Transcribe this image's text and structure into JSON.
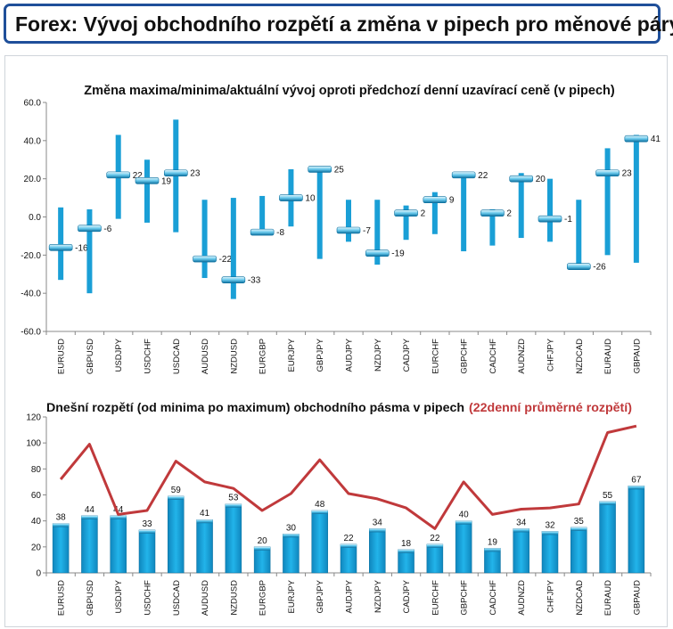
{
  "header": {
    "title": "Forex: Vývoj obchodního rozpětí a změna v pipech pro měnové páry"
  },
  "colors": {
    "bar_blue": "#1a9fd6",
    "avg_line": "#c0393b",
    "header_border": "#1f4f9a",
    "axis": "#888888"
  },
  "chart_data": [
    {
      "type": "range",
      "title": "Změna maxima/minima/aktuální vývoj oproti předchozí denní uzavírací ceně (v pipech)",
      "categories": [
        "EURUSD",
        "GBPUSD",
        "USDJPY",
        "USDCHF",
        "USDCAD",
        "AUDUSD",
        "NZDUSD",
        "EURGBP",
        "EURJPY",
        "GBPJPY",
        "AUDJPY",
        "NZDJPY",
        "CADJPY",
        "EURCHF",
        "GBPCHF",
        "CADCHF",
        "AUDNZD",
        "CHFJPY",
        "NZDCAD",
        "EURAUD",
        "GBPAUD"
      ],
      "high": [
        5,
        4,
        43,
        30,
        51,
        9,
        10,
        11,
        25,
        26,
        9,
        9,
        6,
        13,
        22,
        4,
        23,
        20,
        9,
        36,
        43
      ],
      "low": [
        -33,
        -40,
        -1,
        -3,
        -8,
        -32,
        -43,
        -9,
        -5,
        -22,
        -13,
        -25,
        -12,
        -9,
        -18,
        -15,
        -11,
        -13,
        -27,
        -20,
        -24
      ],
      "current": [
        -16,
        -6,
        22,
        19,
        23,
        -22,
        -33,
        -8,
        10,
        25,
        -7,
        -19,
        2,
        9,
        22,
        2,
        20,
        -1,
        -26,
        23,
        41
      ],
      "current_labels": [
        "-16",
        "-6",
        "22",
        "19",
        "23",
        "-22",
        "-33",
        "-8",
        "10",
        "25",
        "-7",
        "-19",
        "2",
        "9",
        "22",
        "2",
        "20",
        "-1",
        "-26",
        "23",
        "41"
      ],
      "ylim": [
        -60,
        60
      ],
      "y_ticks": [
        "60.0",
        "40.0",
        "20.0",
        "0.0",
        "-20.0",
        "-40.0",
        "-60.0"
      ],
      "y_tick_values": [
        60,
        40,
        20,
        0,
        -20,
        -40,
        -60
      ]
    },
    {
      "type": "bar+line",
      "title": "Dnešní rozpětí (od minima po maximum) obchodního pásma v pipech",
      "title_highlight": "(22denní průměrné rozpětí)",
      "categories": [
        "EURUSD",
        "GBPUSD",
        "USDJPY",
        "USDCHF",
        "USDCAD",
        "AUDUSD",
        "NZDUSD",
        "EURGBP",
        "EURJPY",
        "GBPJPY",
        "AUDJPY",
        "NZDJPY",
        "CADJPY",
        "EURCHF",
        "GBPCHF",
        "CADCHF",
        "AUDNZD",
        "CHFJPY",
        "NZDCAD",
        "EURAUD",
        "GBPAUD"
      ],
      "values": [
        38,
        44,
        44,
        33,
        59,
        41,
        53,
        20,
        30,
        48,
        22,
        34,
        18,
        22,
        40,
        19,
        34,
        32,
        35,
        55,
        67
      ],
      "value_labels": [
        "38",
        "44",
        "44",
        "33",
        "59",
        "41",
        "53",
        "20",
        "30",
        "48",
        "22",
        "34",
        "18",
        "22",
        "40",
        "19",
        "34",
        "32",
        "35",
        "55",
        "67"
      ],
      "avg_22d": [
        72,
        99,
        45,
        48,
        86,
        70,
        65,
        48,
        61,
        87,
        61,
        57,
        50,
        34,
        70,
        45,
        49,
        50,
        53,
        108,
        113
      ],
      "ylim": [
        0,
        120
      ],
      "y_ticks": [
        "120",
        "100",
        "80",
        "60",
        "40",
        "20",
        "0"
      ],
      "y_tick_values": [
        120,
        100,
        80,
        60,
        40,
        20,
        0
      ]
    }
  ]
}
